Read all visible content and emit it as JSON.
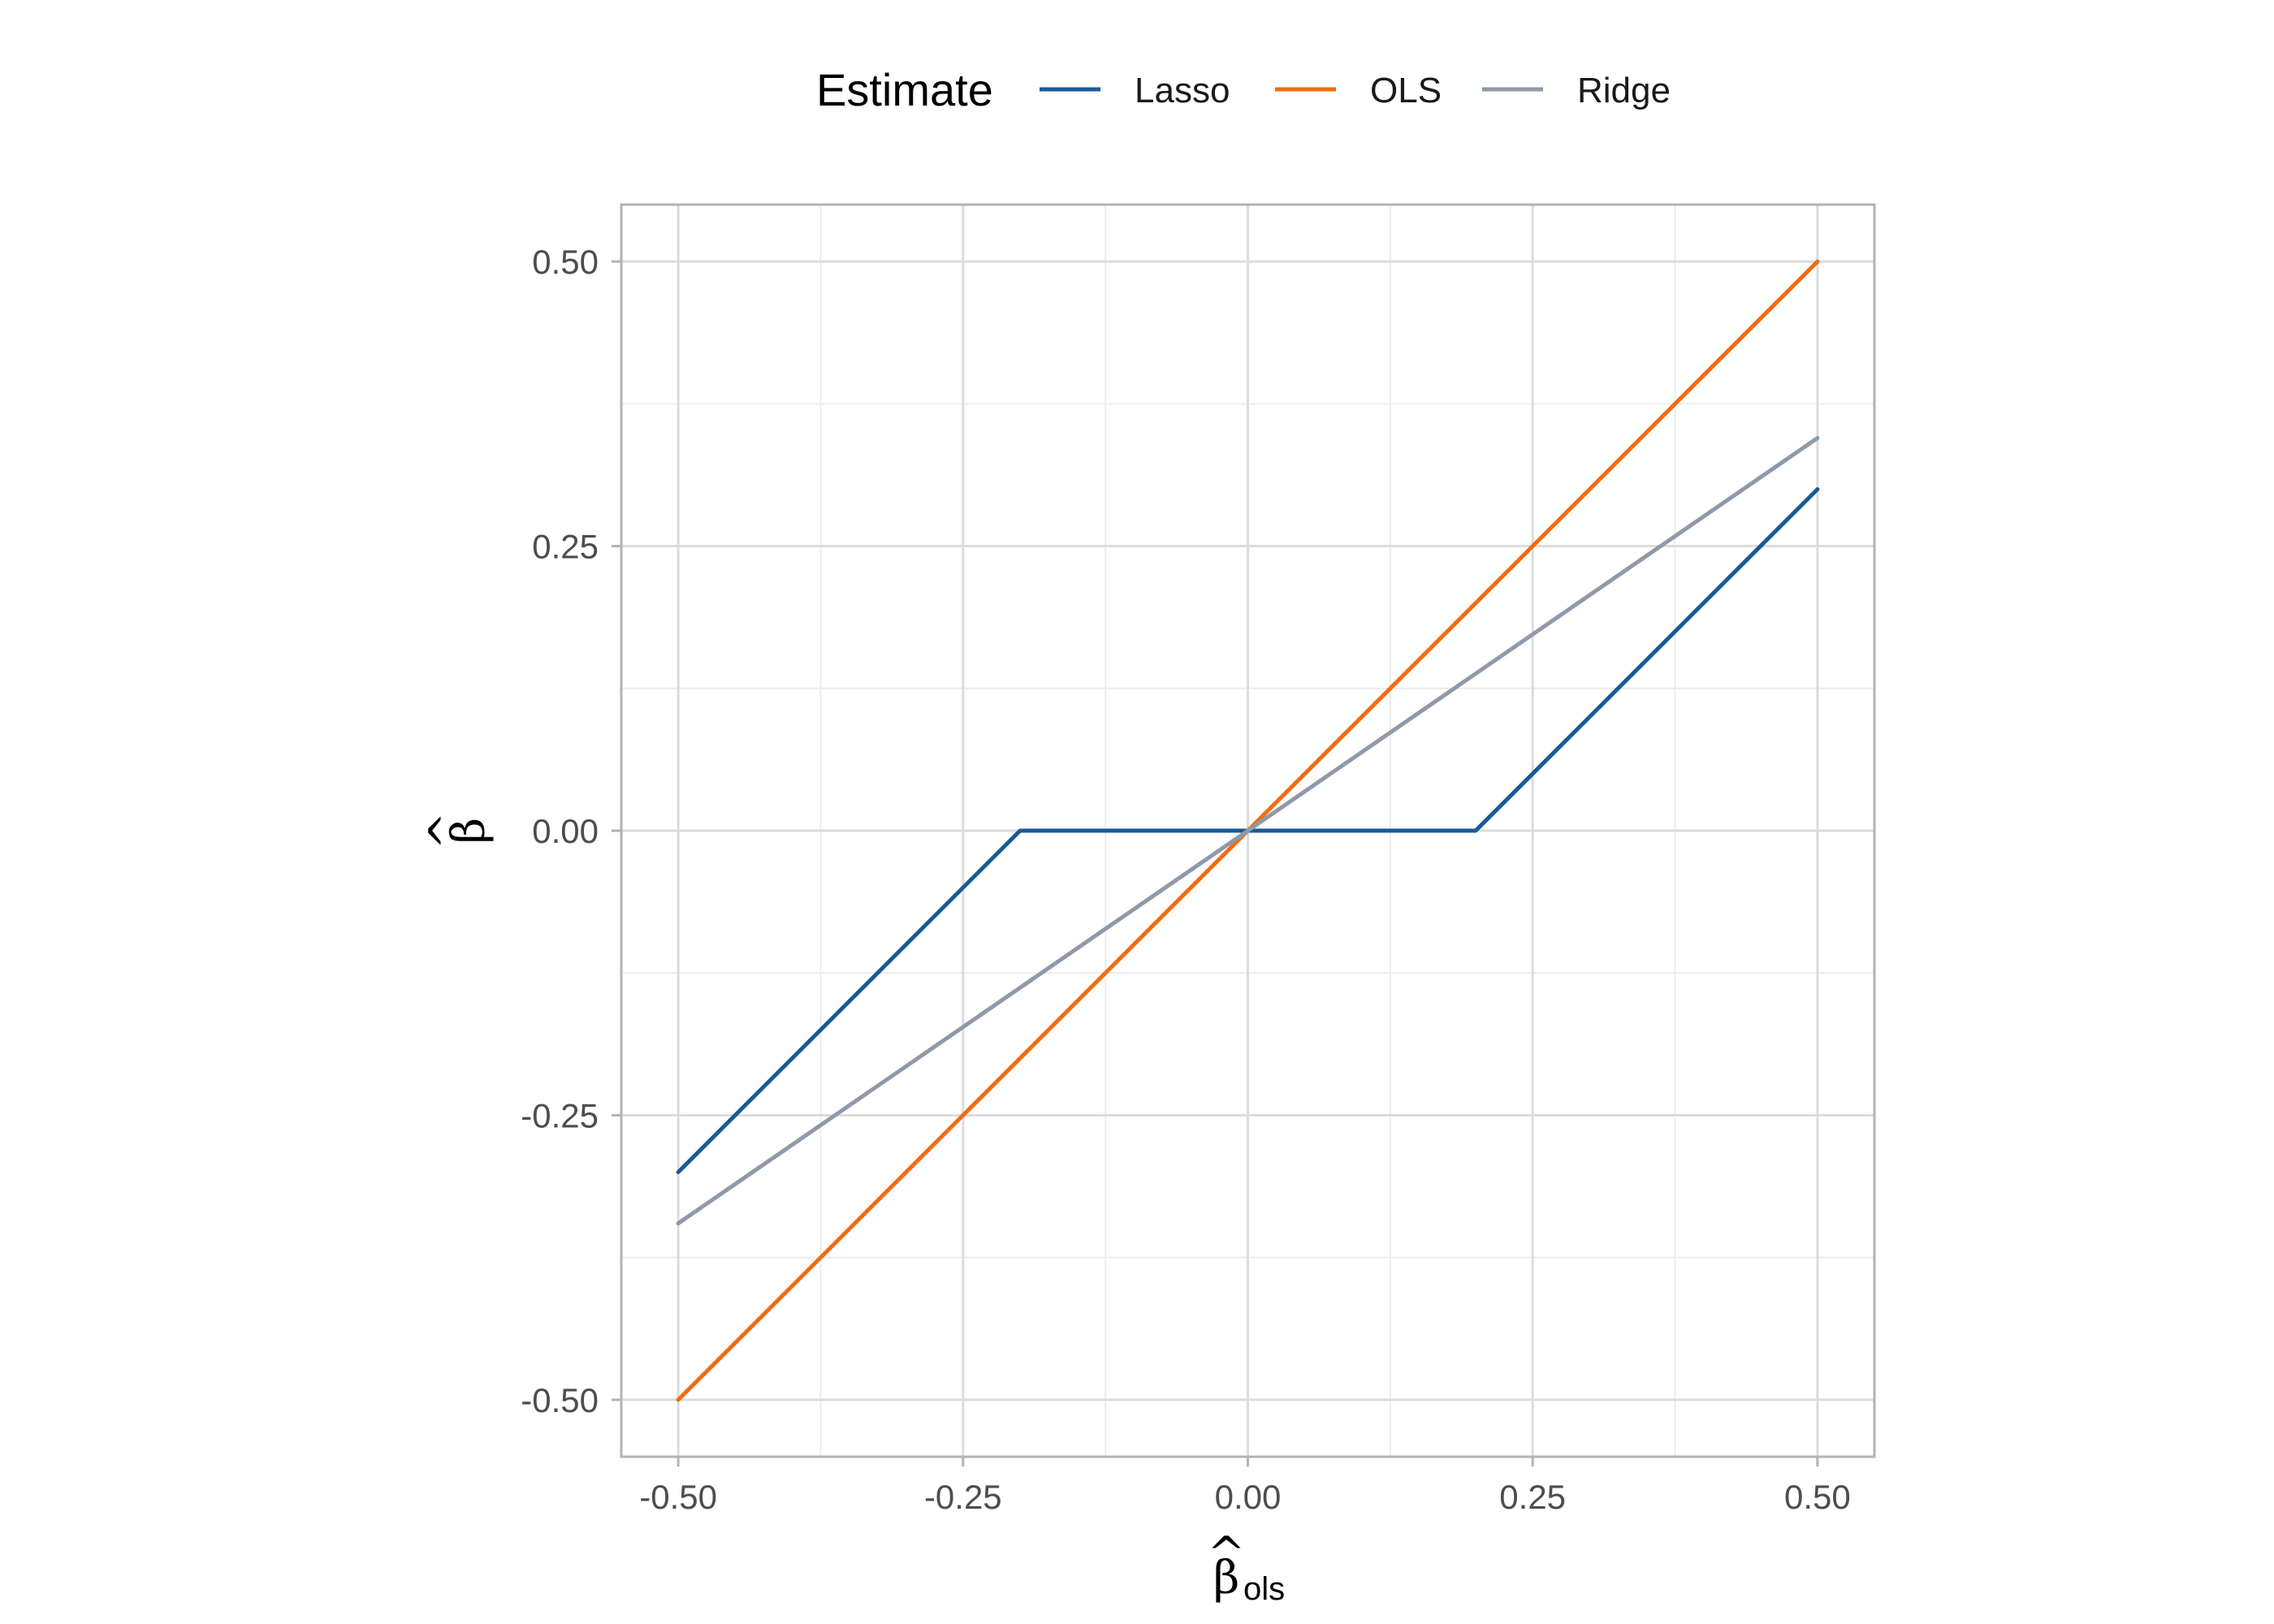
{
  "chart_data": {
    "type": "line",
    "legend": {
      "title": "Estimate",
      "position": "top"
    },
    "xlabel": {
      "symbol": "β",
      "hat": "^",
      "subscript": "ols"
    },
    "ylabel": {
      "symbol": "β",
      "hat": "^"
    },
    "xlim": [
      -0.5,
      0.5
    ],
    "ylim": [
      -0.5,
      0.5
    ],
    "x_ticks": [
      -0.5,
      -0.25,
      0,
      0.25,
      0.5
    ],
    "x_tick_labels": [
      "-0.50",
      "-0.25",
      "0.00",
      "0.25",
      "0.50"
    ],
    "y_ticks": [
      -0.5,
      -0.25,
      0,
      0.25,
      0.5
    ],
    "y_tick_labels": [
      "-0.50",
      "-0.25",
      "0.00",
      "0.25",
      "0.50"
    ],
    "grid": true,
    "series": [
      {
        "name": "Lasso",
        "color": "#1a5a96",
        "x": [
          -0.5,
          -0.2,
          0.2,
          0.5
        ],
        "y": [
          -0.3,
          0.0,
          0.0,
          0.3
        ]
      },
      {
        "name": "OLS",
        "color": "#f26c12",
        "x": [
          -0.5,
          0.5
        ],
        "y": [
          -0.5,
          0.5
        ]
      },
      {
        "name": "Ridge",
        "color": "#8f99a8",
        "x": [
          -0.5,
          0.5
        ],
        "y": [
          -0.345,
          0.345
        ]
      }
    ]
  }
}
